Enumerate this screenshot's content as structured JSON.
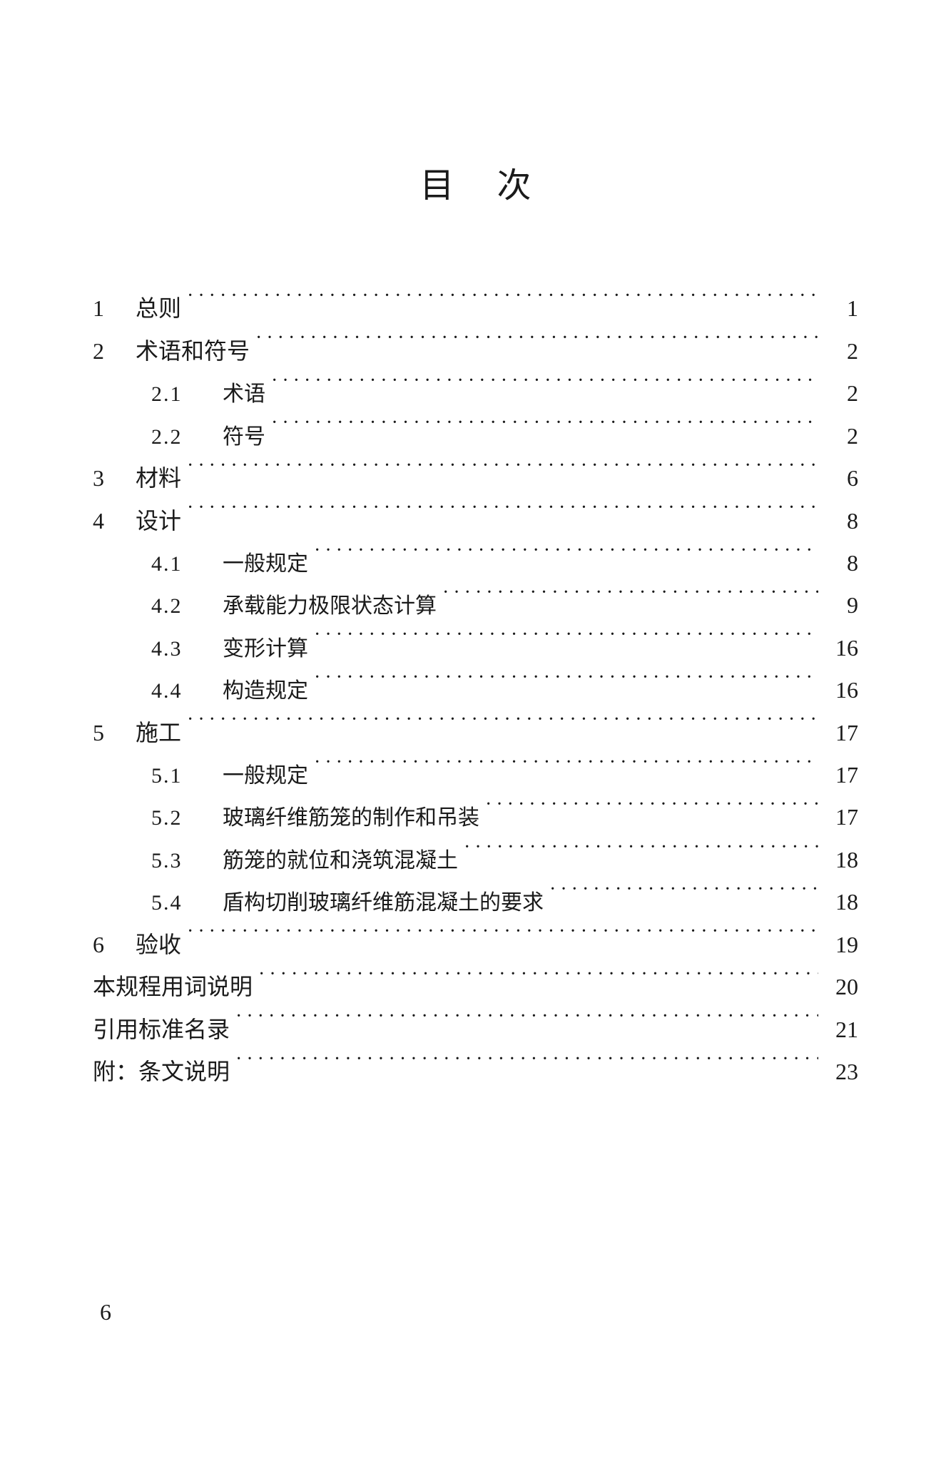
{
  "title": "目次",
  "page_number": "6",
  "colors": {
    "text": "#1a1a1a",
    "background": "#ffffff"
  },
  "typography": {
    "title_fontsize": 48,
    "body_fontsize": 32,
    "sub_fontsize": 30,
    "font_family": "SimSun"
  },
  "toc": [
    {
      "type": "main",
      "num": "1",
      "label": "总则",
      "page": "1"
    },
    {
      "type": "main",
      "num": "2",
      "label": "术语和符号",
      "page": "2"
    },
    {
      "type": "sub",
      "num": "2.1",
      "label": "术语",
      "page": "2"
    },
    {
      "type": "sub",
      "num": "2.2",
      "label": "符号",
      "page": "2"
    },
    {
      "type": "main",
      "num": "3",
      "label": "材料",
      "page": "6"
    },
    {
      "type": "main",
      "num": "4",
      "label": "设计",
      "page": "8"
    },
    {
      "type": "sub",
      "num": "4.1",
      "label": "一般规定",
      "page": "8"
    },
    {
      "type": "sub",
      "num": "4.2",
      "label": "承载能力极限状态计算",
      "page": "9"
    },
    {
      "type": "sub",
      "num": "4.3",
      "label": "变形计算",
      "page": "16"
    },
    {
      "type": "sub",
      "num": "4.4",
      "label": "构造规定",
      "page": "16"
    },
    {
      "type": "main",
      "num": "5",
      "label": "施工",
      "page": "17"
    },
    {
      "type": "sub",
      "num": "5.1",
      "label": "一般规定",
      "page": "17"
    },
    {
      "type": "sub",
      "num": "5.2",
      "label": "玻璃纤维筋笼的制作和吊装",
      "page": "17"
    },
    {
      "type": "sub",
      "num": "5.3",
      "label": "筋笼的就位和浇筑混凝土",
      "page": "18"
    },
    {
      "type": "sub",
      "num": "5.4",
      "label": "盾构切削玻璃纤维筋混凝土的要求",
      "page": "18"
    },
    {
      "type": "main",
      "num": "6",
      "label": "验收",
      "page": "19"
    },
    {
      "type": "main",
      "num": "",
      "label": "本规程用词说明",
      "page": "20"
    },
    {
      "type": "main",
      "num": "",
      "label": "引用标准名录",
      "page": "21"
    },
    {
      "type": "main",
      "num": "",
      "label": "附：条文说明",
      "page": "23"
    }
  ]
}
